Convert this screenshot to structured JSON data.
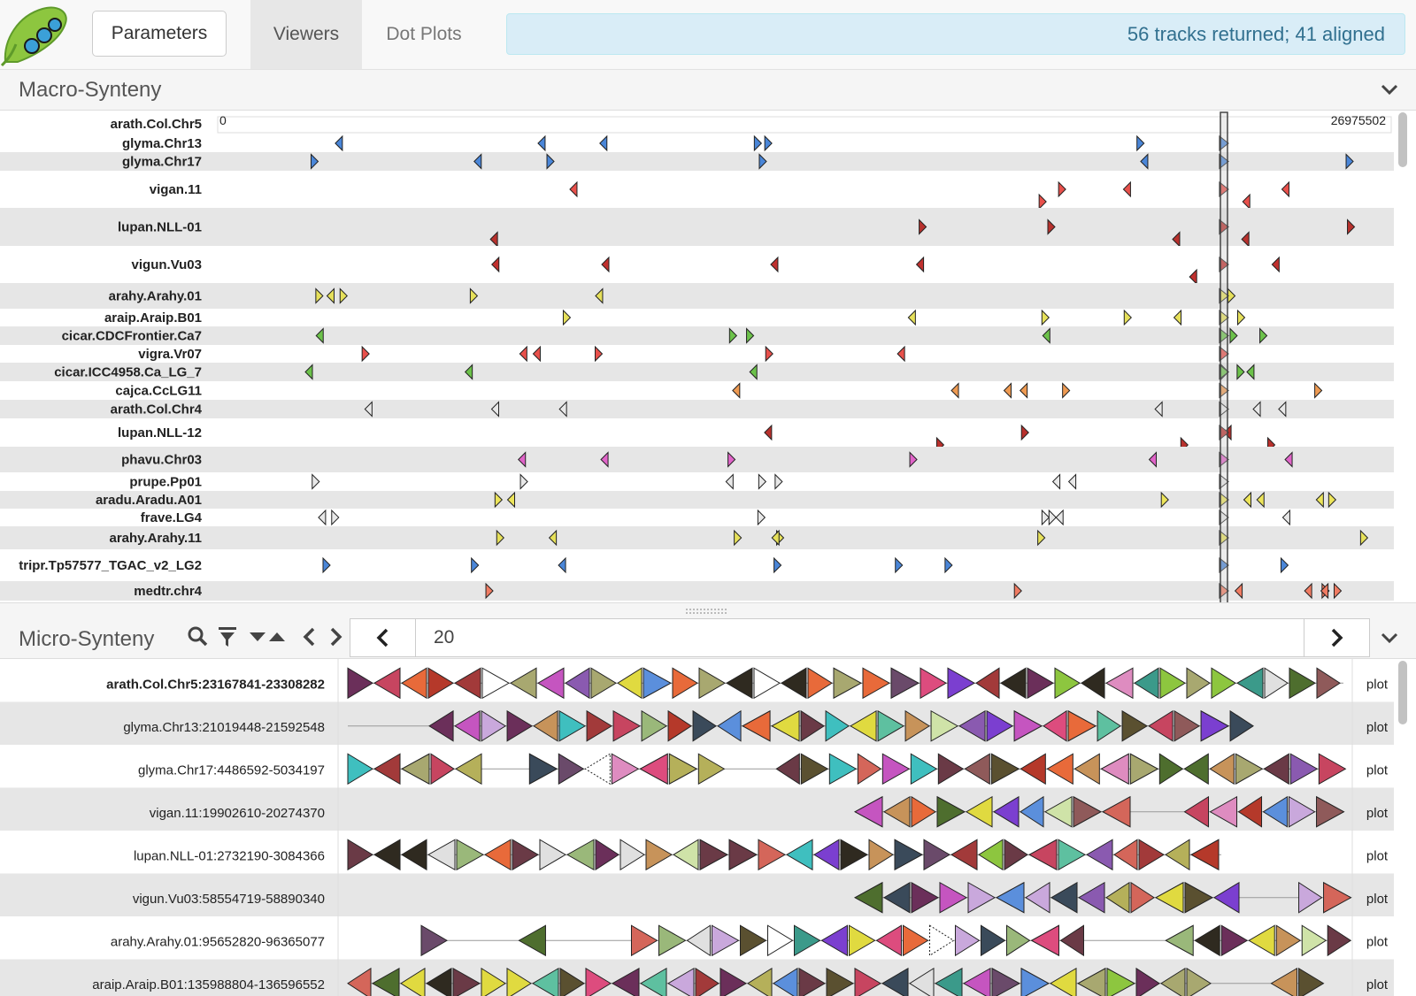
{
  "header": {
    "parameters_label": "Parameters",
    "tabs": [
      "Viewers",
      "Dot Plots"
    ],
    "status": "56 tracks returned; 41 aligned"
  },
  "macro": {
    "title": "Macro-Synteny",
    "reference": "arath.Col.Chr5",
    "axis_start": "0",
    "axis_end": "26975502",
    "tracks": [
      {
        "name": "glyma.Chr13",
        "color": "#4a86d8"
      },
      {
        "name": "glyma.Chr17",
        "color": "#4a86d8"
      },
      {
        "name": "vigan.11",
        "color": "#e8504b"
      },
      {
        "name": "lupan.NLL-01",
        "color": "#b8312d"
      },
      {
        "name": "vigun.Vu03",
        "color": "#c0302e"
      },
      {
        "name": "arahy.Arahy.01",
        "color": "#e6e05a"
      },
      {
        "name": "araip.Araip.B01",
        "color": "#e6e05a"
      },
      {
        "name": "cicar.CDCFrontier.Ca7",
        "color": "#6cc24a"
      },
      {
        "name": "vigra.Vr07",
        "color": "#e8504b"
      },
      {
        "name": "cicar.ICC4958.Ca_LG_7",
        "color": "#6cc24a"
      },
      {
        "name": "cajca.CcLG11",
        "color": "#ee9a52"
      },
      {
        "name": "arath.Col.Chr4",
        "color": "#e8e8e8"
      },
      {
        "name": "lupan.NLL-12",
        "color": "#b8312d"
      },
      {
        "name": "phavu.Chr03",
        "color": "#e064c8"
      },
      {
        "name": "prupe.Pp01",
        "color": "#e8e8e8"
      },
      {
        "name": "aradu.Aradu.A01",
        "color": "#ece45a"
      },
      {
        "name": "frave.LG4",
        "color": "#e8e8e8"
      },
      {
        "name": "arahy.Arahy.11",
        "color": "#e6e05a"
      },
      {
        "name": "tripr.Tp57577_TGAC_v2_LG2",
        "color": "#4a86d8"
      },
      {
        "name": "medtr.chr4",
        "color": "#f07b62"
      }
    ]
  },
  "micro": {
    "title": "Micro-Synteny",
    "nav_value": "20",
    "plot_label": "plot",
    "tracks": [
      "arath.Col.Chr5:23167841-23308282",
      "glyma.Chr13:21019448-21592548",
      "glyma.Chr17:4486592-5034197",
      "vigan.11:19902610-20274370",
      "lupan.NLL-01:2732190-3084366",
      "vigun.Vu03:58554719-58890340",
      "arahy.Arahy.01:95652820-96365077",
      "araip.Araip.B01:135988804-136596552"
    ],
    "palette": [
      "#4e6e2e",
      "#ffffff",
      "#dd4c7e",
      "#de8cc0",
      "#cfe3a8",
      "#5a5030",
      "#c74560",
      "#2f2a20",
      "#e0da40",
      "#c9a8dc",
      "#6a3a46",
      "#5b8fdc",
      "#8dc63f",
      "#d4665a",
      "#7b3fd0",
      "#3b9a8a",
      "#3a4a5a",
      "#a8a870",
      "#6b2f5a",
      "#b5392a",
      "#c555c0",
      "#8f5a5a",
      "#6a4a6a",
      "#a23a3a",
      "#b5b05a",
      "#9ab87a",
      "#e0e0e0",
      "#5ec0a0",
      "#e86a3a",
      "#8a5ab0",
      "#3fbfbf",
      "#c7935a"
    ]
  }
}
